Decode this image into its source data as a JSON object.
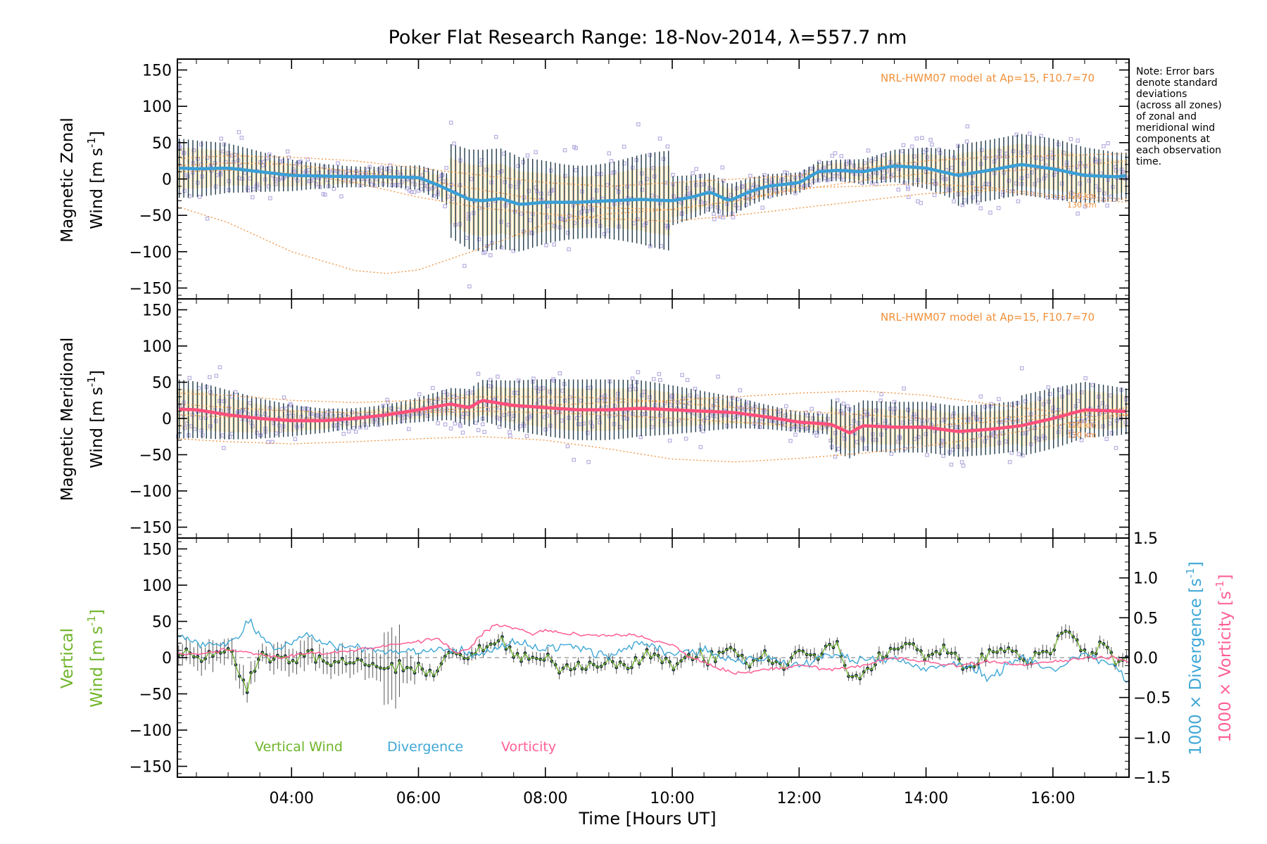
{
  "title": "Poker Flat Research Range: 18-Nov-2014, λ=557.7 nm",
  "note": [
    "Note: Error bars",
    "denote standard",
    "deviations",
    "(across all zones)",
    "of zonal and",
    "meridional wind",
    "components at",
    "each observation",
    "time."
  ],
  "colors": {
    "model": "#f0903a",
    "samples": "#b8aee0",
    "errorbar": "#1f3a4a",
    "zonal": "#3a9fd6",
    "meridional": "#ff4f7b",
    "vertical": "#6fb52a",
    "divergence": "#3fa7d6",
    "vorticity": "#ff5f95"
  },
  "chart_data": [
    {
      "type": "line",
      "panel": "Magnetic Zonal Wind",
      "ylabel": "Magnetic Zonal Wind [m s-1]",
      "ylabel_lines": [
        "Magnetic Zonal",
        "Wind [m s"
      ],
      "ylim": [
        -165,
        165
      ],
      "yticks": [
        "150",
        "100",
        "50",
        "0",
        "−50",
        "−100",
        "−150"
      ],
      "model_label": "NRL-HWM07 model at Ap=15, F10.7=70",
      "model_alt_labels": [
        "120 km",
        "130 km"
      ],
      "series": [
        {
          "name": "Magnetic Zonal Wind",
          "x_hours": [
            2.2,
            2.5,
            3.0,
            3.5,
            4.0,
            4.5,
            5.0,
            5.5,
            6.0,
            6.3,
            6.6,
            6.8,
            7.0,
            7.3,
            7.6,
            8.0,
            8.5,
            9.0,
            9.5,
            10.0,
            10.3,
            10.6,
            10.9,
            11.2,
            11.5,
            12.0,
            12.3,
            12.6,
            13.0,
            13.5,
            14.0,
            14.5,
            15.0,
            15.5,
            16.0,
            16.5,
            17.0,
            17.2
          ],
          "values": [
            15,
            14,
            15,
            10,
            5,
            4,
            3,
            3,
            2,
            -8,
            -20,
            -28,
            -30,
            -27,
            -35,
            -32,
            -32,
            -30,
            -28,
            -30,
            -25,
            -18,
            -30,
            -18,
            -10,
            -5,
            10,
            12,
            10,
            18,
            15,
            5,
            12,
            20,
            14,
            5,
            3,
            5
          ]
        }
      ],
      "model_curves": {
        "x_hours": [
          2.2,
          3.0,
          4.0,
          5.0,
          5.5,
          6.0,
          7.0,
          8.0,
          9.0,
          10.0,
          11.0,
          12.0,
          13.0,
          14.0,
          15.0,
          16.0,
          17.2
        ],
        "lines": [
          [
            -38,
            -60,
            -100,
            -126,
            -130,
            -125,
            -95,
            -62,
            -48,
            -42,
            -30,
            -12,
            -10,
            -6,
            -12,
            -22,
            -28
          ],
          [
            18,
            22,
            20,
            10,
            5,
            0,
            -15,
            -30,
            -40,
            -42,
            -30,
            -15,
            -2,
            8,
            10,
            15,
            25
          ],
          [
            10,
            12,
            8,
            -5,
            -15,
            -25,
            -40,
            -48,
            -55,
            -58,
            -50,
            -40,
            -30,
            -20,
            -15,
            -25,
            -32
          ],
          [
            28,
            32,
            30,
            25,
            20,
            15,
            5,
            -5,
            -10,
            -5,
            0,
            5,
            15,
            25,
            30,
            32,
            35
          ]
        ]
      }
    },
    {
      "type": "line",
      "panel": "Magnetic Meridional Wind",
      "ylabel": "Magnetic Meridional Wind [m s-1]",
      "ylabel_lines": [
        "Magnetic Meridional",
        "Wind [m s"
      ],
      "ylim": [
        -165,
        165
      ],
      "yticks": [
        "150",
        "100",
        "50",
        "0",
        "−50",
        "−100",
        "−150"
      ],
      "model_label": "NRL-HWM07 model at Ap=15, F10.7=70",
      "model_alt_labels": [
        "120 km",
        "130 km"
      ],
      "series": [
        {
          "name": "Magnetic Meridional Wind",
          "x_hours": [
            2.2,
            2.5,
            3.0,
            3.5,
            4.0,
            4.5,
            5.0,
            5.5,
            6.0,
            6.5,
            6.8,
            7.0,
            7.5,
            8.0,
            8.5,
            9.0,
            9.5,
            10.0,
            10.5,
            11.0,
            11.5,
            12.0,
            12.5,
            12.8,
            13.0,
            13.5,
            14.0,
            14.5,
            15.0,
            15.5,
            16.0,
            16.5,
            17.0,
            17.2
          ],
          "values": [
            13,
            12,
            5,
            0,
            -3,
            -3,
            0,
            5,
            12,
            20,
            15,
            25,
            18,
            15,
            12,
            12,
            14,
            12,
            10,
            8,
            2,
            -5,
            -8,
            -20,
            -10,
            -12,
            -12,
            -18,
            -15,
            -10,
            0,
            12,
            10,
            10
          ]
        }
      ],
      "model_curves": {
        "x_hours": [
          2.2,
          3.0,
          4.0,
          5.0,
          6.0,
          7.0,
          8.0,
          9.0,
          10.0,
          11.0,
          12.0,
          13.0,
          14.0,
          15.0,
          16.0,
          17.2
        ],
        "lines": [
          [
            -28,
            -32,
            -35,
            -32,
            -28,
            -25,
            -30,
            -42,
            -56,
            -60,
            -55,
            -48,
            -38,
            -25,
            -10,
            5
          ],
          [
            20,
            15,
            10,
            8,
            10,
            15,
            18,
            22,
            25,
            30,
            35,
            38,
            32,
            20,
            10,
            5
          ],
          [
            5,
            2,
            0,
            2,
            8,
            10,
            8,
            5,
            0,
            -5,
            -10,
            -12,
            -10,
            -5,
            0,
            5
          ],
          [
            35,
            32,
            25,
            22,
            25,
            30,
            30,
            28,
            22,
            15,
            10,
            5,
            0,
            0,
            5,
            15
          ]
        ]
      }
    },
    {
      "type": "line",
      "panel": "Vertical Wind, Divergence, Vorticity",
      "ylabel": "Vertical Wind [m s-1]",
      "ylabel_lines": [
        "Vertical",
        "Wind [m s"
      ],
      "ylim": [
        -165,
        165
      ],
      "yticks": [
        "150",
        "100",
        "50",
        "0",
        "−50",
        "−100",
        "−150"
      ],
      "y2label_a": "1000 × Divergence [s-1]",
      "y2label_b": "1000 × Vorticity [s-1]",
      "y2lim": [
        -1.5,
        1.5
      ],
      "y2ticks": [
        "1.5",
        "1.0",
        "0.5",
        "0.0",
        "−0.5",
        "−1.0",
        "−1.5"
      ],
      "legend": [
        "Vertical Wind",
        "Divergence",
        "Vorticity"
      ],
      "series": [
        {
          "name": "Vertical Wind",
          "x_hours": [
            2.2,
            2.4,
            2.6,
            2.8,
            3.0,
            3.2,
            3.3,
            3.5,
            3.7,
            4.0,
            4.3,
            4.6,
            5.0,
            5.3,
            5.6,
            6.0,
            6.3,
            6.5,
            6.8,
            7.0,
            7.3,
            7.6,
            8.0,
            8.3,
            8.6,
            9.0,
            9.3,
            9.6,
            10.0,
            10.3,
            10.6,
            10.9,
            11.2,
            11.5,
            11.8,
            12.0,
            12.3,
            12.6,
            12.8,
            13.0,
            13.2,
            13.5,
            13.8,
            14.0,
            14.3,
            14.6,
            15.0,
            15.3,
            15.6,
            16.0,
            16.2,
            16.5,
            16.8,
            17.0,
            17.2
          ],
          "values": [
            5,
            10,
            -5,
            5,
            15,
            -30,
            -38,
            5,
            0,
            0,
            5,
            -10,
            -5,
            -10,
            -15,
            -18,
            -15,
            10,
            0,
            10,
            25,
            -5,
            0,
            -15,
            -10,
            -5,
            -10,
            5,
            -10,
            5,
            -5,
            15,
            -10,
            5,
            -15,
            10,
            0,
            20,
            -30,
            -25,
            -5,
            10,
            20,
            0,
            15,
            -15,
            5,
            15,
            -5,
            15,
            40,
            5,
            20,
            -10,
            10
          ]
        },
        {
          "name": "Divergence",
          "axis": "y2",
          "x_hours": [
            2.2,
            2.6,
            3.0,
            3.2,
            3.3,
            3.5,
            3.8,
            4.2,
            4.6,
            5.0,
            5.5,
            6.0,
            6.5,
            7.0,
            7.5,
            8.0,
            8.5,
            9.0,
            9.5,
            10.0,
            10.5,
            11.0,
            11.5,
            12.0,
            12.5,
            13.0,
            13.5,
            14.0,
            14.5,
            15.0,
            15.5,
            16.0,
            16.5,
            17.0,
            17.2
          ],
          "values": [
            0.3,
            0.15,
            0.2,
            0.3,
            0.5,
            0.25,
            0.1,
            0.3,
            0.15,
            0.15,
            0.05,
            0.1,
            0.1,
            0.05,
            0.2,
            0.1,
            0.15,
            0.0,
            0.2,
            0.05,
            0.1,
            -0.05,
            0.0,
            -0.1,
            0.05,
            -0.05,
            0.0,
            -0.15,
            -0.05,
            -0.25,
            0.0,
            -0.15,
            0.05,
            -0.1,
            -0.3
          ]
        },
        {
          "name": "Vorticity",
          "axis": "y2",
          "x_hours": [
            2.2,
            2.6,
            3.0,
            3.4,
            3.8,
            4.2,
            4.6,
            5.0,
            5.5,
            6.0,
            6.3,
            6.6,
            6.8,
            7.0,
            7.2,
            7.5,
            7.8,
            8.0,
            8.3,
            8.6,
            9.0,
            9.4,
            9.8,
            10.0,
            10.3,
            10.6,
            11.0,
            11.5,
            12.0,
            12.5,
            13.0,
            13.5,
            14.0,
            14.5,
            15.0,
            15.5,
            16.0,
            16.5,
            17.0,
            17.2
          ],
          "values": [
            0.05,
            0.05,
            0.1,
            0.05,
            0.0,
            0.05,
            0.05,
            0.1,
            0.15,
            0.2,
            0.25,
            0.05,
            0.1,
            0.3,
            0.4,
            0.38,
            0.3,
            0.35,
            0.3,
            0.28,
            0.28,
            0.28,
            0.2,
            0.15,
            0.0,
            -0.1,
            -0.2,
            -0.15,
            -0.1,
            -0.15,
            -0.1,
            0.0,
            -0.05,
            -0.1,
            -0.05,
            -0.1,
            -0.05,
            0.0,
            0.0,
            -0.05
          ]
        }
      ]
    }
  ],
  "x_axis": {
    "label": "Time [Hours UT]",
    "xlim_hours": [
      2.2,
      17.2
    ],
    "tick_hours": [
      4,
      6,
      8,
      10,
      12,
      14,
      16
    ],
    "tick_labels": [
      "04:00",
      "06:00",
      "08:00",
      "10:00",
      "12:00",
      "14:00",
      "16:00"
    ]
  }
}
